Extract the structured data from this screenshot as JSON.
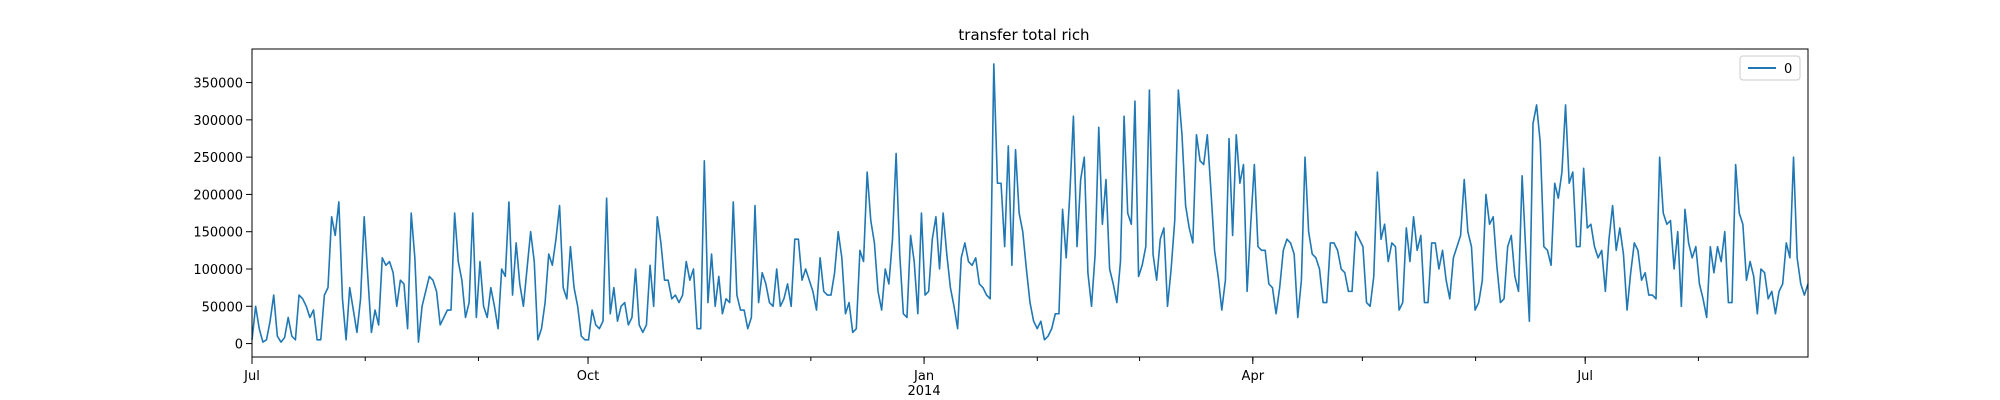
{
  "chart_data": {
    "type": "line",
    "title": "transfer total rich",
    "xlabel": "",
    "ylabel": "",
    "x_start": "2013-07-01",
    "x_end": "2014-08-31",
    "x_ticks": [
      {
        "date": "2013-07-01",
        "label": "Jul",
        "sublabel": ""
      },
      {
        "date": "2013-10-01",
        "label": "Oct",
        "sublabel": ""
      },
      {
        "date": "2014-01-01",
        "label": "Jan",
        "sublabel": "2014"
      },
      {
        "date": "2014-04-01",
        "label": "Apr",
        "sublabel": ""
      },
      {
        "date": "2014-07-01",
        "label": "Jul",
        "sublabel": ""
      }
    ],
    "ylim": [
      -18000,
      395000
    ],
    "y_ticks": [
      0,
      50000,
      100000,
      150000,
      200000,
      250000,
      300000,
      350000
    ],
    "grid": false,
    "legend": "top-right",
    "colors": {
      "line": "#1f77b4",
      "axis": "#000000"
    },
    "series": [
      {
        "name": "0",
        "values": [
          5000,
          50000,
          20000,
          2000,
          5000,
          30000,
          65000,
          10000,
          2000,
          8000,
          35000,
          10000,
          5000,
          65000,
          60000,
          50000,
          35000,
          45000,
          5000,
          5000,
          65000,
          75000,
          170000,
          145000,
          190000,
          60000,
          5000,
          75000,
          45000,
          15000,
          60000,
          170000,
          90000,
          15000,
          45000,
          25000,
          115000,
          105000,
          110000,
          95000,
          50000,
          85000,
          80000,
          20000,
          175000,
          115000,
          2000,
          50000,
          70000,
          90000,
          85000,
          70000,
          25000,
          35000,
          45000,
          45000,
          175000,
          110000,
          85000,
          35000,
          55000,
          175000,
          35000,
          110000,
          50000,
          35000,
          75000,
          50000,
          20000,
          100000,
          90000,
          190000,
          65000,
          135000,
          80000,
          50000,
          100000,
          150000,
          110000,
          5000,
          20000,
          55000,
          120000,
          105000,
          140000,
          185000,
          75000,
          60000,
          130000,
          75000,
          50000,
          10000,
          5000,
          5000,
          45000,
          25000,
          20000,
          30000,
          195000,
          40000,
          75000,
          30000,
          50000,
          55000,
          25000,
          35000,
          100000,
          25000,
          15000,
          25000,
          105000,
          50000,
          170000,
          135000,
          85000,
          85000,
          60000,
          65000,
          55000,
          65000,
          110000,
          85000,
          100000,
          20000,
          20000,
          245000,
          55000,
          120000,
          50000,
          90000,
          40000,
          60000,
          55000,
          190000,
          65000,
          45000,
          45000,
          20000,
          35000,
          185000,
          55000,
          95000,
          80000,
          55000,
          50000,
          100000,
          50000,
          60000,
          80000,
          50000,
          140000,
          140000,
          85000,
          100000,
          85000,
          70000,
          45000,
          115000,
          70000,
          65000,
          65000,
          95000,
          150000,
          115000,
          40000,
          55000,
          15000,
          20000,
          125000,
          110000,
          230000,
          165000,
          135000,
          70000,
          45000,
          100000,
          80000,
          140000,
          255000,
          120000,
          40000,
          35000,
          145000,
          110000,
          40000,
          175000,
          65000,
          70000,
          140000,
          170000,
          100000,
          175000,
          120000,
          75000,
          50000,
          20000,
          115000,
          135000,
          110000,
          105000,
          115000,
          80000,
          75000,
          65000,
          60000,
          375000,
          215000,
          215000,
          130000,
          265000,
          105000,
          260000,
          175000,
          150000,
          100000,
          55000,
          30000,
          20000,
          30000,
          5000,
          10000,
          20000,
          40000,
          40000,
          180000,
          115000,
          200000,
          305000,
          130000,
          220000,
          250000,
          95000,
          50000,
          120000,
          290000,
          160000,
          220000,
          100000,
          80000,
          55000,
          110000,
          305000,
          175000,
          160000,
          325000,
          90000,
          105000,
          130000,
          340000,
          120000,
          85000,
          140000,
          155000,
          50000,
          100000,
          165000,
          340000,
          280000,
          185000,
          155000,
          135000,
          280000,
          245000,
          240000,
          280000,
          205000,
          125000,
          90000,
          45000,
          85000,
          275000,
          145000,
          280000,
          215000,
          240000,
          70000,
          160000,
          240000,
          130000,
          125000,
          125000,
          80000,
          75000,
          40000,
          75000,
          125000,
          140000,
          135000,
          120000,
          35000,
          85000,
          250000,
          150000,
          120000,
          115000,
          100000,
          55000,
          55000,
          135000,
          135000,
          125000,
          100000,
          95000,
          70000,
          70000,
          150000,
          140000,
          130000,
          55000,
          50000,
          90000,
          230000,
          140000,
          160000,
          110000,
          135000,
          130000,
          45000,
          55000,
          155000,
          110000,
          170000,
          125000,
          145000,
          55000,
          55000,
          135000,
          135000,
          100000,
          125000,
          85000,
          60000,
          115000,
          130000,
          145000,
          220000,
          150000,
          130000,
          45000,
          55000,
          85000,
          200000,
          160000,
          170000,
          105000,
          55000,
          60000,
          130000,
          145000,
          90000,
          70000,
          225000,
          125000,
          30000,
          295000,
          320000,
          270000,
          130000,
          125000,
          105000,
          215000,
          195000,
          230000,
          320000,
          215000,
          230000,
          130000,
          130000,
          235000,
          155000,
          160000,
          130000,
          115000,
          125000,
          70000,
          140000,
          185000,
          125000,
          155000,
          120000,
          45000,
          95000,
          135000,
          125000,
          85000,
          95000,
          65000,
          65000,
          60000,
          250000,
          175000,
          160000,
          165000,
          100000,
          150000,
          50000,
          180000,
          135000,
          115000,
          130000,
          80000,
          60000,
          35000,
          130000,
          95000,
          130000,
          110000,
          150000,
          55000,
          55000,
          240000,
          175000,
          160000,
          85000,
          110000,
          90000,
          40000,
          100000,
          95000,
          60000,
          70000,
          40000,
          70000,
          80000,
          135000,
          115000,
          250000,
          115000,
          80000,
          65000,
          80000
        ]
      }
    ]
  }
}
